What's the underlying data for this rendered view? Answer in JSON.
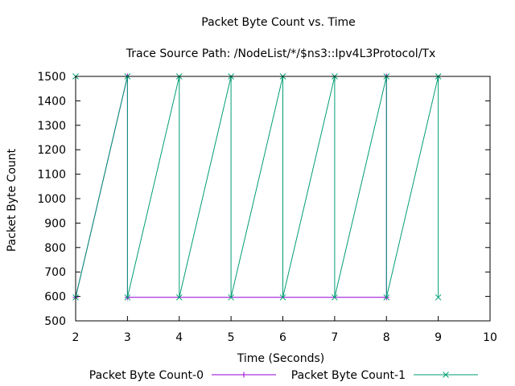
{
  "chart_data": {
    "type": "line",
    "title": "Packet Byte Count vs. Time",
    "subtitle": "Trace Source Path: /NodeList/*/$ns3::Ipv4L3Protocol/Tx",
    "xlabel": "Time (Seconds)",
    "ylabel": "Packet Byte Count",
    "xlim": [
      2,
      10
    ],
    "ylim": [
      500,
      1500
    ],
    "xticks": [
      2,
      3,
      4,
      5,
      6,
      7,
      8,
      9,
      10
    ],
    "yticks": [
      500,
      600,
      700,
      800,
      900,
      1000,
      1100,
      1200,
      1300,
      1400,
      1500
    ],
    "grid": false,
    "legend_position": "bottom",
    "series": [
      {
        "name": "Packet Byte Count-0",
        "color": "#9400d3",
        "marker": "plus",
        "x": [
          2,
          3,
          3,
          8,
          8
        ],
        "y": [
          596,
          1500,
          596,
          596,
          1500
        ]
      },
      {
        "name": "Packet Byte Count-1",
        "color": "#009e73",
        "marker": "cross",
        "x": [
          2,
          2,
          3,
          3,
          4,
          4,
          5,
          5,
          6,
          6,
          7,
          7,
          8,
          8,
          9,
          9
        ],
        "y": [
          1500,
          596,
          1500,
          596,
          1500,
          596,
          1500,
          596,
          1500,
          596,
          1500,
          596,
          1500,
          596,
          1500,
          596
        ]
      }
    ]
  }
}
